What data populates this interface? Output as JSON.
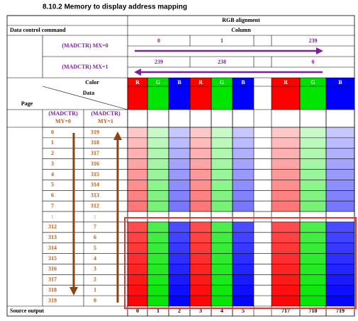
{
  "heading": "8.10.2  Memory to display address mapping",
  "table": {
    "title": "RGB alignment",
    "command_header": "Data control command",
    "column_header": "Column",
    "mx0": {
      "label": "(MADCTR) MX=0",
      "columns": [
        0,
        1,
        239
      ]
    },
    "mx1": {
      "label": "(MADCTR) MX=1",
      "columns": [
        239,
        238,
        0
      ]
    },
    "color_label": "Color",
    "data_label": "Data",
    "page_label": "Page",
    "subpixels": [
      "R",
      "G",
      "B",
      "R",
      "G",
      "B",
      "R",
      "G",
      "B"
    ],
    "my0": [
      "(MADCTR)",
      "MY=0"
    ],
    "my1": [
      "(MADCTR)",
      "MY=1"
    ],
    "rows": [
      [
        0,
        319
      ],
      [
        1,
        318
      ],
      [
        2,
        317
      ],
      [
        3,
        316
      ],
      [
        4,
        315
      ],
      [
        5,
        314
      ],
      [
        6,
        313
      ],
      [
        7,
        312
      ],
      [
        ":",
        ":"
      ],
      [
        312,
        7
      ],
      [
        313,
        6
      ],
      [
        314,
        5
      ],
      [
        315,
        4
      ],
      [
        316,
        3
      ],
      [
        317,
        2
      ],
      [
        318,
        1
      ],
      [
        319,
        0
      ]
    ],
    "source_label": "Source output",
    "source": [
      0,
      1,
      2,
      3,
      4,
      5,
      717,
      718,
      719
    ]
  }
}
